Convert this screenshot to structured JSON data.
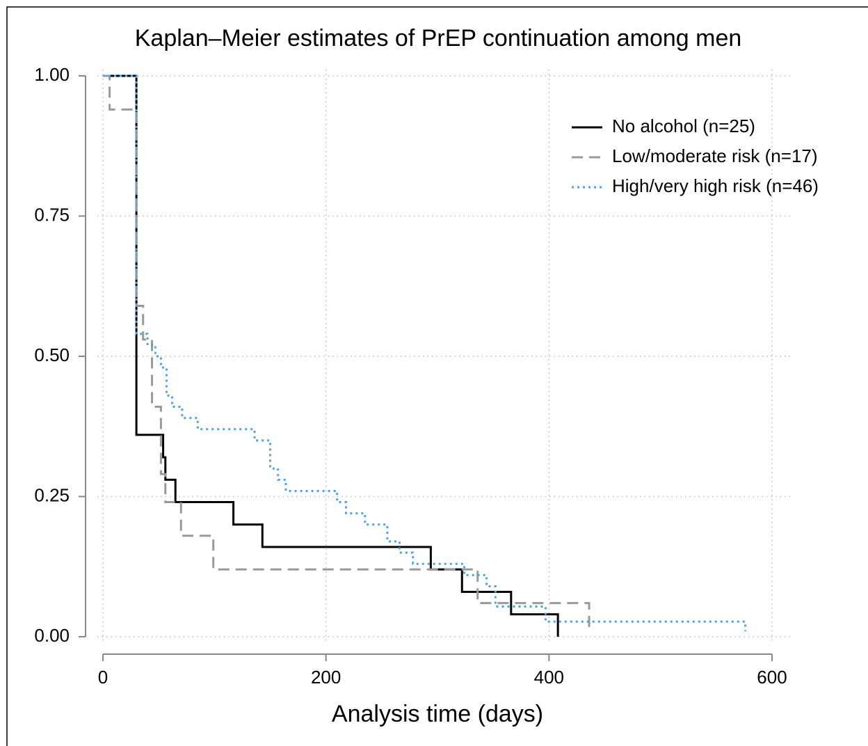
{
  "chart_data": {
    "type": "step",
    "title": "Kaplan–Meier estimates of PrEP continuation among men",
    "x_label": "Analysis time (days)",
    "xlim": [
      0,
      600
    ],
    "xticks": [
      0,
      200,
      400,
      600
    ],
    "ylim": [
      0,
      1
    ],
    "yticks": [
      {
        "value": 0,
        "label": "0.00"
      },
      {
        "value": 0.25,
        "label": "0.25"
      },
      {
        "value": 0.5,
        "label": "0.50"
      },
      {
        "value": 0.75,
        "label": "0.75"
      },
      {
        "value": 1,
        "label": "1.00"
      }
    ],
    "grid": true,
    "legend": "top right",
    "series": [
      {
        "name": "No alcohol (n=25)",
        "color": "#000000",
        "dash": "solid",
        "x": [
          0,
          30,
          54,
          56,
          65,
          117,
          143,
          294,
          322,
          366,
          408
        ],
        "values": [
          1,
          0.36,
          0.32,
          0.28,
          0.24,
          0.2,
          0.16,
          0.12,
          0.08,
          0.04,
          0
        ]
      },
      {
        "name": "Low/moderate risk (n=17)",
        "color": "#999999",
        "dash": "dashed",
        "x": [
          0,
          6,
          30,
          36,
          44,
          52,
          56,
          70,
          99,
          336,
          436
        ],
        "values": [
          1,
          0.94,
          0.59,
          0.53,
          0.41,
          0.29,
          0.24,
          0.18,
          0.12,
          0.06,
          0.01
        ]
      },
      {
        "name": "High/very high risk (n=46)",
        "color": "#4da3e0",
        "dash": "dotted",
        "x": [
          0,
          30,
          40,
          47,
          52,
          57,
          62,
          71,
          85,
          136,
          150,
          157,
          164,
          210,
          218,
          235,
          255,
          266,
          278,
          324,
          344,
          352,
          397,
          576
        ],
        "values": [
          1,
          0.54,
          0.52,
          0.5,
          0.48,
          0.43,
          0.41,
          0.39,
          0.37,
          0.35,
          0.3,
          0.28,
          0.26,
          0.24,
          0.22,
          0.2,
          0.17,
          0.15,
          0.13,
          0.11,
          0.09,
          0.054,
          0.027,
          0.01
        ]
      }
    ]
  }
}
